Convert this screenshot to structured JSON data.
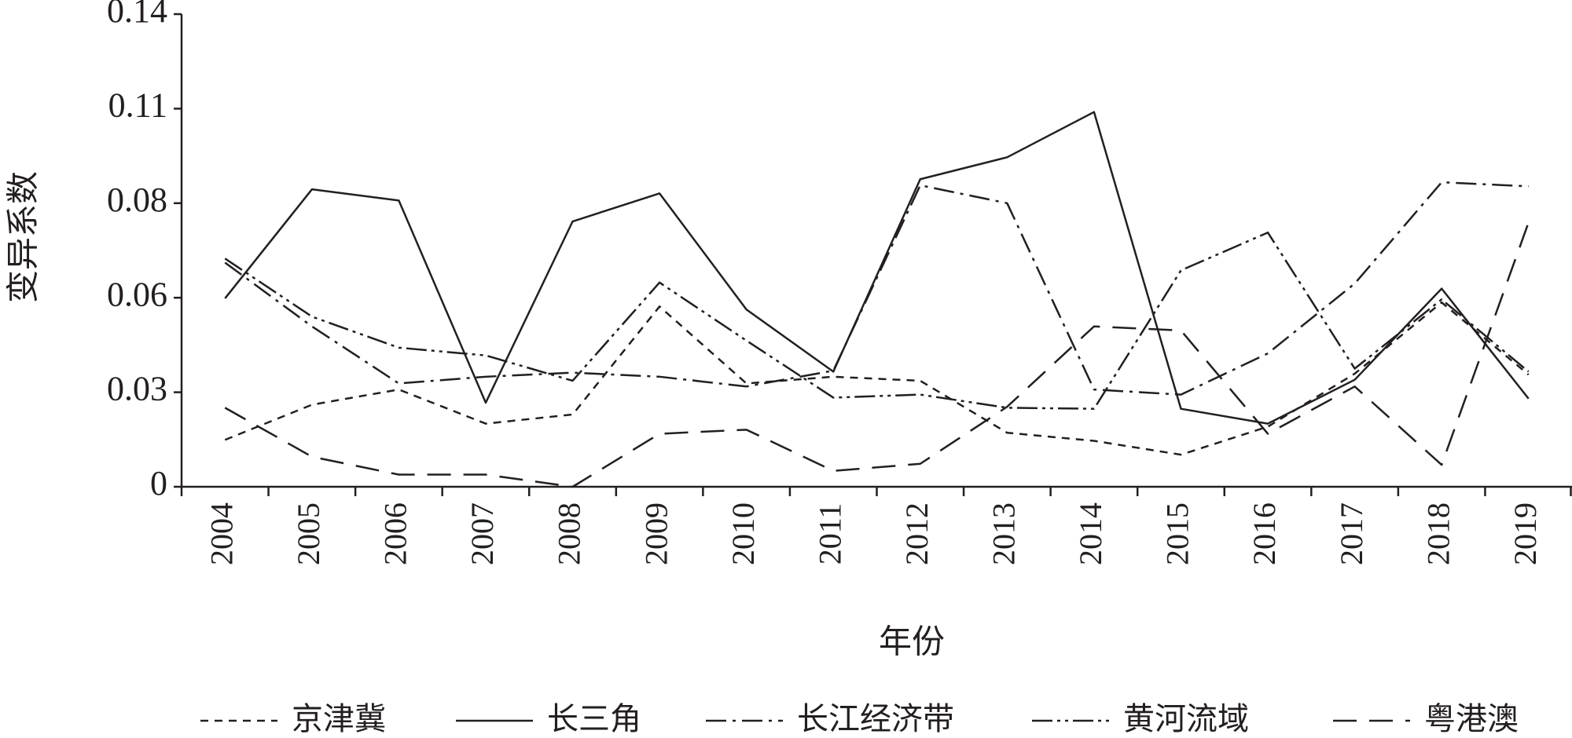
{
  "chart_data": {
    "type": "line",
    "x_label": "年份",
    "y_label": "变异系数",
    "categories": [
      "2004",
      "2005",
      "2006",
      "2007",
      "2008",
      "2009",
      "2010",
      "2011",
      "2012",
      "2013",
      "2014",
      "2015",
      "2016",
      "2017",
      "2018",
      "2019"
    ],
    "ylim": [
      0,
      0.14
    ],
    "yticks": [
      0,
      {
        "value": 0.028,
        "label": "0.03"
      },
      {
        "value": 0.056,
        "label": "0.06"
      },
      {
        "value": 0.084,
        "label": "0.08"
      },
      {
        "value": 0.112,
        "label": "0.11"
      },
      0.14
    ],
    "series": [
      {
        "name": "京津冀",
        "color": "#231f20",
        "dash": "short",
        "values": [
          0.0139,
          0.0243,
          0.0288,
          0.0187,
          0.0214,
          0.0534,
          0.0306,
          0.0326,
          0.0314,
          0.016,
          0.0136,
          0.0095,
          0.0178,
          0.0335,
          0.0546,
          0.0332
        ]
      },
      {
        "name": "长三角",
        "color": "#231f20",
        "dash": "solid",
        "values": [
          0.0558,
          0.0881,
          0.0848,
          0.0249,
          0.0786,
          0.0869,
          0.0525,
          0.0341,
          0.0911,
          0.0976,
          0.111,
          0.0231,
          0.0187,
          0.0317,
          0.0587,
          0.0261
        ]
      },
      {
        "name": "长江经济带",
        "color": "#231f20",
        "dash": "dashdot",
        "values": [
          0.0664,
          0.0475,
          0.0306,
          0.0326,
          0.0338,
          0.0326,
          0.0297,
          0.0344,
          0.0893,
          0.084,
          0.0288,
          0.0273,
          0.0395,
          0.0602,
          0.0902,
          0.089
        ]
      },
      {
        "name": "黄河流域",
        "color": "#231f20",
        "dash": "dashdotdot",
        "values": [
          0.0676,
          0.0504,
          0.0412,
          0.0389,
          0.0314,
          0.0605,
          0.0433,
          0.0264,
          0.0273,
          0.0234,
          0.0231,
          0.0641,
          0.0753,
          0.035,
          0.0555,
          0.0341
        ]
      },
      {
        "name": "粤港澳",
        "color": "#231f20",
        "dash": "long",
        "values": [
          0.0234,
          0.0089,
          0.0036,
          0.0036,
          0,
          0.0157,
          0.0169,
          0.0047,
          0.0068,
          0.0237,
          0.0475,
          0.0463,
          0.0157,
          0.0297,
          0.0065,
          0.0783
        ]
      }
    ]
  }
}
